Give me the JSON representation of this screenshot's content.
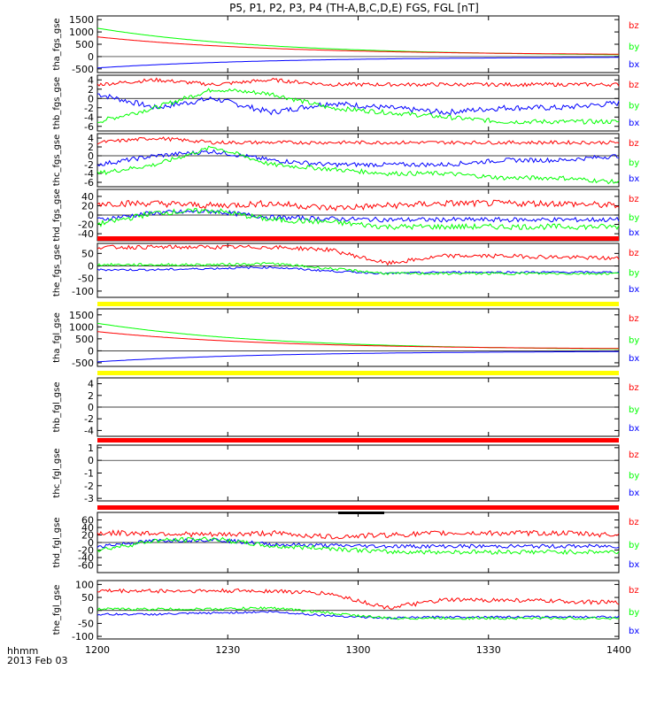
{
  "title": "P5, P1, P2, P3, P4 (TH-A,B,C,D,E) FGS, FGL [nT]",
  "time_axis": {
    "label_line1": "hhmm",
    "label_line2": "2013 Feb 03",
    "ticks": [
      "1200",
      "1230",
      "1300",
      "1330",
      "1400"
    ],
    "range_min": [
      0,
      120
    ]
  },
  "colors": {
    "bx": "#0000ff",
    "by": "#00ff00",
    "bz": "#ff0000",
    "bar_red": "#ff0000",
    "bar_yellow": "#ffff00",
    "bar_black": "#000000"
  },
  "chart_data": [
    {
      "type": "line",
      "panel": "tha_fgs_gse",
      "ylabel": "tha_fgs_gse",
      "ylim": [
        -650,
        1650
      ],
      "yticks": [
        -500,
        0,
        500,
        1000,
        1500
      ],
      "series": [
        {
          "name": "bx",
          "start": -460,
          "end": -10,
          "noise": 0
        },
        {
          "name": "by",
          "start": 1150,
          "end": 20,
          "noise": 0
        },
        {
          "name": "bz",
          "start": 800,
          "end": 60,
          "noise": 0
        }
      ]
    },
    {
      "type": "line",
      "panel": "thb_fgs_gse",
      "ylabel": "thb_fgs_gse",
      "ylim": [
        -7,
        5
      ],
      "yticks": [
        -6,
        -4,
        -2,
        0,
        2,
        4
      ],
      "series": [
        {
          "name": "bx",
          "levels": [
            1,
            -2,
            0,
            -3,
            -1,
            -2,
            -3,
            -2,
            -2,
            -1
          ],
          "noise": 0.6
        },
        {
          "name": "by",
          "levels": [
            -5,
            -2,
            2,
            1,
            -2,
            -3,
            -4,
            -5,
            -5,
            -5
          ],
          "noise": 0.5
        },
        {
          "name": "bz",
          "levels": [
            3,
            4,
            3,
            4,
            3,
            3,
            3,
            3,
            3,
            3
          ],
          "noise": 0.4
        }
      ]
    },
    {
      "type": "line",
      "panel": "thc_fgs_gse",
      "ylabel": "thc_fgs_gse",
      "ylim": [
        -7,
        5
      ],
      "yticks": [
        -6,
        -4,
        -2,
        0,
        2,
        4
      ],
      "series": [
        {
          "name": "bx",
          "levels": [
            -2,
            0,
            1,
            -1,
            -2,
            -2,
            -2,
            -1,
            -1,
            0
          ],
          "noise": 0.5
        },
        {
          "name": "by",
          "levels": [
            -4,
            -2,
            2,
            -2,
            -3,
            -4,
            -4,
            -5,
            -5,
            -6
          ],
          "noise": 0.5
        },
        {
          "name": "bz",
          "levels": [
            3,
            4,
            3,
            3,
            3,
            3,
            3,
            3,
            3,
            3
          ],
          "noise": 0.4
        }
      ]
    },
    {
      "type": "line",
      "panel": "thd_fgs_gse",
      "ylabel": "thd_fgs_gse",
      "ylim": [
        -55,
        55
      ],
      "yticks": [
        -40,
        -20,
        0,
        20,
        40
      ],
      "series": [
        {
          "name": "bx",
          "levels": [
            -10,
            5,
            8,
            -5,
            -8,
            -10,
            -10,
            -10,
            -10,
            -10
          ],
          "noise": 5
        },
        {
          "name": "by",
          "levels": [
            -20,
            5,
            10,
            -10,
            -15,
            -25,
            -25,
            -25,
            -25,
            -25
          ],
          "noise": 6
        },
        {
          "name": "bz",
          "levels": [
            25,
            25,
            20,
            25,
            15,
            20,
            25,
            25,
            25,
            20
          ],
          "noise": 7
        }
      ]
    },
    {
      "type": "line",
      "panel": "the_fgs_gse",
      "ylabel": "the_fgs_gse",
      "ylim": [
        -125,
        90
      ],
      "yticks": [
        -100,
        -50,
        0,
        50
      ],
      "series": [
        {
          "name": "bx",
          "levels": [
            -15,
            -15,
            -10,
            -5,
            -20,
            -30,
            -25,
            -25,
            -25,
            -25
          ],
          "noise": 4
        },
        {
          "name": "by",
          "levels": [
            5,
            5,
            5,
            10,
            -10,
            -30,
            -30,
            -30,
            -30,
            -30
          ],
          "noise": 5
        },
        {
          "name": "bz",
          "levels": [
            75,
            75,
            75,
            75,
            65,
            10,
            40,
            40,
            35,
            30
          ],
          "noise": 8
        }
      ]
    },
    {
      "type": "line",
      "panel": "tha_fgl_gse",
      "ylabel": "tha_fgl_gse",
      "ylim": [
        -650,
        1750
      ],
      "yticks": [
        -500,
        0,
        500,
        1000,
        1500
      ],
      "series": [
        {
          "name": "bx",
          "start": -460,
          "end": -10,
          "noise": 0
        },
        {
          "name": "by",
          "start": 1150,
          "end": 20,
          "noise": 0
        },
        {
          "name": "bz",
          "start": 800,
          "end": 60,
          "noise": 0
        }
      ]
    },
    {
      "type": "line",
      "panel": "thb_fgl_gse",
      "ylabel": "thb_fgl_gse",
      "ylim": [
        -5,
        5
      ],
      "yticks": [
        -4,
        -2,
        0,
        2,
        4
      ],
      "series": []
    },
    {
      "type": "line",
      "panel": "thc_fgl_gse",
      "ylabel": "thc_fgl_gse",
      "ylim": [
        -3.2,
        1.2
      ],
      "yticks": [
        -3,
        -2,
        -1,
        0,
        1
      ],
      "series": []
    },
    {
      "type": "line",
      "panel": "thd_fgl_gse",
      "ylabel": "thd_fgl_gse",
      "ylim": [
        -80,
        80
      ],
      "yticks": [
        -60,
        -40,
        -20,
        0,
        20,
        40,
        60
      ],
      "series": [
        {
          "name": "bx",
          "levels": [
            -10,
            5,
            8,
            -5,
            -8,
            -10,
            -10,
            -10,
            -10,
            -10
          ],
          "noise": 5
        },
        {
          "name": "by",
          "levels": [
            -20,
            5,
            10,
            -10,
            -15,
            -25,
            -25,
            -25,
            -25,
            -25
          ],
          "noise": 6
        },
        {
          "name": "bz",
          "levels": [
            25,
            25,
            20,
            25,
            15,
            20,
            25,
            25,
            25,
            20
          ],
          "noise": 7
        }
      ]
    },
    {
      "type": "line",
      "panel": "the_fgl_gse",
      "ylabel": "the_fgl_gse",
      "ylim": [
        -110,
        115
      ],
      "yticks": [
        -100,
        -50,
        0,
        50,
        100
      ],
      "series": [
        {
          "name": "bx",
          "levels": [
            -15,
            -15,
            -10,
            -5,
            -20,
            -30,
            -25,
            -25,
            -25,
            -25
          ],
          "noise": 4
        },
        {
          "name": "by",
          "levels": [
            5,
            5,
            5,
            10,
            -10,
            -30,
            -30,
            -30,
            -30,
            -30
          ],
          "noise": 5
        },
        {
          "name": "bz",
          "levels": [
            75,
            75,
            75,
            75,
            65,
            10,
            40,
            40,
            35,
            30
          ],
          "noise": 8
        }
      ]
    }
  ],
  "legend": [
    "bz",
    "by",
    "bx"
  ],
  "bars": [
    {
      "after_panel": 4,
      "color": "bar_red"
    },
    {
      "after_panel": 5,
      "color": "bar_yellow"
    },
    {
      "after_panel": 6,
      "color": "bar_yellow"
    },
    {
      "after_panel": 7,
      "color": "bar_red"
    },
    {
      "after_panel": 8,
      "color": "bar_red"
    }
  ]
}
